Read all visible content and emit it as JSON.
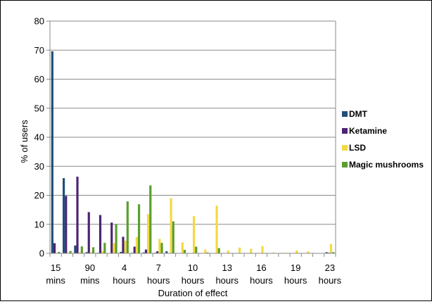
{
  "chart_data": {
    "type": "bar",
    "xlabel": "Duration of effect",
    "ylabel": "% of users",
    "ylim": [
      0,
      80
    ],
    "yticks": [
      0,
      10,
      20,
      30,
      40,
      50,
      60,
      70,
      80
    ],
    "grid": "horizontal",
    "legend_position": "right",
    "categories": [
      "15 mins",
      "",
      "",
      "90 mins",
      "",
      "",
      "4 hours",
      "",
      "",
      "7 hours",
      "",
      "",
      "10 hours",
      "",
      "",
      "13 hours",
      "",
      "",
      "16 hours",
      "",
      "",
      "19 hours",
      "",
      "",
      "23 hours"
    ],
    "x_tick_labels": [
      {
        "line1": "15",
        "line2": "mins"
      },
      {
        "line1": "90",
        "line2": "mins"
      },
      {
        "line1": "4",
        "line2": "hours"
      },
      {
        "line1": "7",
        "line2": "hours"
      },
      {
        "line1": "10",
        "line2": "hours"
      },
      {
        "line1": "13",
        "line2": "hours"
      },
      {
        "line1": "16",
        "line2": "hours"
      },
      {
        "line1": "19",
        "line2": "hours"
      },
      {
        "line1": "23",
        "line2": "hours"
      }
    ],
    "series": [
      {
        "name": "DMT",
        "color": "#1f4e79",
        "values": [
          69.6,
          25.9,
          2.7,
          0.4,
          0.2,
          0,
          0.5,
          0.2,
          0.3,
          0.2,
          0.7,
          0,
          0,
          0.1,
          0,
          0,
          0,
          0,
          0,
          0,
          0,
          0,
          0,
          0,
          0.4
        ]
      },
      {
        "name": "Ketamine",
        "color": "#4b2472",
        "values": [
          3.5,
          19.8,
          26.4,
          14.2,
          13.2,
          10.6,
          5.7,
          2.3,
          1.3,
          0.7,
          0,
          0,
          0,
          0,
          0.1,
          0,
          0,
          0,
          0,
          0,
          0,
          0,
          0,
          0,
          0.2
        ]
      },
      {
        "name": "LSD",
        "color": "#f4d941",
        "values": [
          0.1,
          0.2,
          0.3,
          0.4,
          0.8,
          3.5,
          4.4,
          5.6,
          13.5,
          5.0,
          19.0,
          3.8,
          12.8,
          1.3,
          16.4,
          1.0,
          2.0,
          1.6,
          2.5,
          0.3,
          0.2,
          1.0,
          0.7,
          0.1,
          3.2
        ]
      },
      {
        "name": "Magic mushrooms",
        "color": "#5b9e2f",
        "values": [
          0.5,
          0.8,
          2.4,
          2.1,
          3.6,
          10.1,
          17.9,
          16.9,
          23.4,
          3.6,
          11.0,
          1.2,
          2.3,
          0.3,
          1.8,
          0,
          0,
          0,
          0,
          0,
          0,
          0,
          0,
          0,
          0.4
        ]
      }
    ]
  }
}
